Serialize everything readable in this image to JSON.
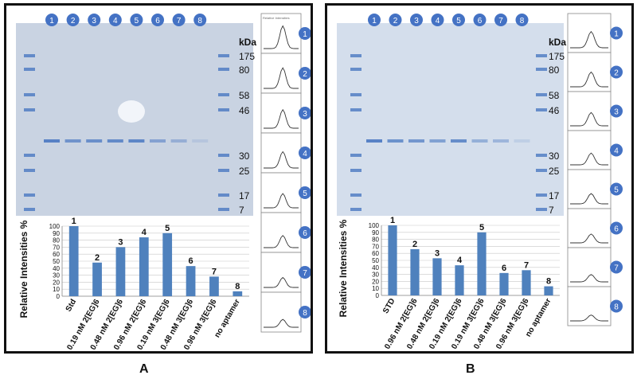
{
  "figure": {
    "panels": [
      {
        "letter": "A",
        "lane_numbers": [
          "1",
          "2",
          "3",
          "4",
          "5",
          "6",
          "7",
          "8"
        ],
        "marker_unit": "kDa",
        "marker_labels": [
          "175",
          "80",
          "58",
          "46",
          "30",
          "25",
          "17",
          "7"
        ],
        "marker_kda": [
          175,
          80,
          58,
          46,
          30,
          25,
          17,
          7
        ],
        "profile_numbers": [
          "1",
          "2",
          "3",
          "4",
          "5",
          "6",
          "7",
          "8"
        ],
        "profile_header_text": "Relative Intensities",
        "band_strength": [
          0.9,
          0.7,
          0.75,
          0.8,
          0.85,
          0.55,
          0.4,
          0.15
        ],
        "colors": {
          "gel": "#c9d3e2",
          "band": "#4a78c2",
          "bar": "#4f81bd",
          "badge": "#4472c4"
        }
      },
      {
        "letter": "B",
        "lane_numbers": [
          "1",
          "2",
          "3",
          "4",
          "5",
          "6",
          "7",
          "8"
        ],
        "marker_unit": "kDa",
        "marker_labels": [
          "175",
          "80",
          "58",
          "46",
          "30",
          "25",
          "17",
          "7"
        ],
        "marker_kda": [
          175,
          80,
          58,
          46,
          30,
          25,
          17,
          7
        ],
        "profile_numbers": [
          "1",
          "2",
          "3",
          "4",
          "5",
          "6",
          "7",
          "8"
        ],
        "profile_header_text": "",
        "band_strength": [
          0.9,
          0.75,
          0.7,
          0.6,
          0.8,
          0.45,
          0.4,
          0.15
        ],
        "colors": {
          "gel": "#d4deec",
          "band": "#4a78c2",
          "bar": "#4f81bd",
          "badge": "#4472c4"
        }
      }
    ]
  },
  "chart_data": [
    {
      "type": "bar",
      "panel": "A",
      "ylabel": "Relative Intensities %",
      "ylim": [
        0,
        100
      ],
      "yticks": [
        0,
        10,
        20,
        30,
        40,
        50,
        60,
        70,
        80,
        90,
        100
      ],
      "grid": true,
      "categories": [
        "Std",
        "0.19 nM 2[EG]6",
        "0.48 nM 2[EG]6",
        "0.96 nM 2[EG]6",
        "0.19 nM 3[EG]6",
        "0.48 nM 3[EG]6",
        "0.96 nM 3[EG]6",
        "no aptamer"
      ],
      "values": [
        100,
        48,
        70,
        84,
        90,
        43,
        28,
        7
      ],
      "bar_labels": [
        "1",
        "2",
        "3",
        "4",
        "5",
        "6",
        "7",
        "8"
      ]
    },
    {
      "type": "bar",
      "panel": "B",
      "ylabel": "Relative Intensities %",
      "ylim": [
        0,
        100
      ],
      "yticks": [
        0,
        10,
        20,
        30,
        40,
        50,
        60,
        70,
        80,
        90,
        100
      ],
      "grid": true,
      "categories": [
        "STD",
        "0.96 nM 2[EG]6",
        "0.48 nM 2[EG]6",
        "0.19 nM 2[EG]6",
        "0.19 nM 3[EG]6",
        "0.48 nM 3[EG]6",
        "0.96 nM 3[EG]6",
        "no aptamer"
      ],
      "values": [
        100,
        66,
        53,
        43,
        90,
        32,
        36,
        13
      ],
      "bar_labels": [
        "1",
        "2",
        "3",
        "4",
        "5",
        "6",
        "7",
        "8"
      ]
    }
  ]
}
